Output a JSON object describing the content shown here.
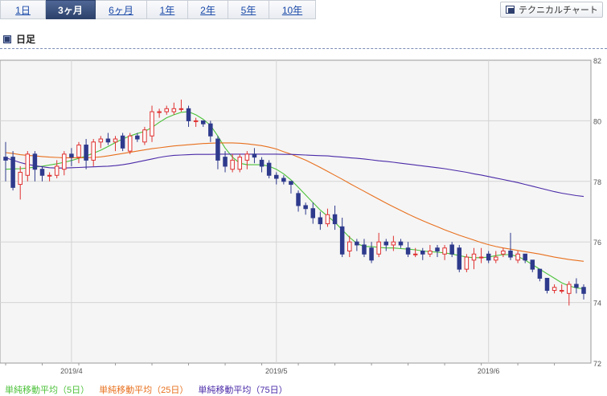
{
  "tabs": [
    {
      "label": "1日",
      "active": false
    },
    {
      "label": "3ヶ月",
      "active": true
    },
    {
      "label": "6ヶ月",
      "active": false
    },
    {
      "label": "1年",
      "active": false
    },
    {
      "label": "2年",
      "active": false
    },
    {
      "label": "5年",
      "active": false
    },
    {
      "label": "10年",
      "active": false
    }
  ],
  "technical_chart_button": "テクニカルチャート",
  "section_title": "日足",
  "colors": {
    "up": "#e03030",
    "down": "#2e3a8c",
    "ma5": "#4cc23a",
    "ma25": "#e8701e",
    "ma75": "#4a2aa8",
    "grid": "#d4d4d4"
  },
  "chart_data": {
    "type": "candlestick",
    "ylim": [
      72,
      82
    ],
    "y_ticks": [
      "72",
      "74",
      "76",
      "78",
      "80",
      "82"
    ],
    "x_labels": [
      {
        "label": "2019/4",
        "index": 9
      },
      {
        "label": "2019/5",
        "index": 37
      },
      {
        "label": "2019/6",
        "index": 66
      }
    ],
    "candles": [
      [
        78.8,
        78.7,
        78.0,
        79.3
      ],
      [
        78.8,
        77.8,
        77.7,
        79.0
      ],
      [
        77.9,
        78.3,
        77.4,
        78.5
      ],
      [
        78.2,
        78.9,
        78.0,
        79.0
      ],
      [
        78.9,
        78.4,
        78.0,
        79.0
      ],
      [
        78.4,
        78.2,
        78.0,
        78.5
      ],
      [
        78.2,
        78.2,
        78.0,
        78.3
      ],
      [
        78.2,
        78.5,
        78.1,
        78.7
      ],
      [
        78.4,
        78.9,
        78.2,
        79.0
      ],
      [
        78.9,
        78.8,
        78.5,
        79.1
      ],
      [
        78.8,
        79.2,
        78.6,
        79.3
      ],
      [
        79.2,
        78.7,
        78.4,
        79.4
      ],
      [
        78.7,
        79.3,
        78.5,
        79.4
      ],
      [
        79.3,
        79.4,
        79.1,
        79.5
      ],
      [
        79.4,
        79.3,
        79.2,
        79.6
      ],
      [
        79.3,
        79.4,
        79.0,
        79.5
      ],
      [
        79.5,
        79.1,
        79.0,
        79.6
      ],
      [
        79.0,
        79.5,
        78.9,
        79.6
      ],
      [
        79.5,
        79.4,
        79.3,
        79.6
      ],
      [
        79.3,
        79.7,
        79.2,
        79.8
      ],
      [
        79.5,
        80.3,
        79.3,
        80.5
      ],
      [
        80.3,
        80.3,
        80.1,
        80.4
      ],
      [
        80.3,
        80.4,
        80.2,
        80.5
      ],
      [
        80.3,
        80.4,
        80.2,
        80.6
      ],
      [
        80.4,
        80.4,
        80.3,
        80.7
      ],
      [
        80.4,
        80.0,
        79.8,
        80.5
      ],
      [
        80.0,
        80.0,
        79.8,
        80.1
      ],
      [
        80.0,
        79.9,
        79.8,
        80.0
      ],
      [
        79.9,
        79.5,
        79.3,
        80.0
      ],
      [
        79.4,
        78.7,
        78.4,
        79.5
      ],
      [
        78.8,
        78.5,
        78.3,
        79.0
      ],
      [
        78.4,
        78.7,
        78.3,
        78.9
      ],
      [
        78.4,
        78.8,
        78.3,
        78.9
      ],
      [
        78.7,
        78.9,
        78.4,
        79.0
      ],
      [
        78.9,
        78.8,
        78.6,
        79.1
      ],
      [
        78.7,
        78.5,
        78.3,
        78.8
      ],
      [
        78.6,
        78.2,
        78.1,
        78.7
      ],
      [
        78.2,
        78.1,
        77.9,
        78.3
      ],
      [
        78.1,
        78.0,
        77.9,
        78.2
      ],
      [
        78.0,
        77.9,
        77.6,
        78.0
      ],
      [
        77.6,
        77.2,
        77.0,
        77.7
      ],
      [
        77.2,
        77.1,
        76.9,
        77.3
      ],
      [
        77.1,
        76.8,
        76.6,
        77.3
      ],
      [
        76.8,
        76.6,
        76.4,
        77.0
      ],
      [
        76.6,
        76.9,
        76.5,
        77.1
      ],
      [
        76.9,
        76.6,
        76.4,
        77.2
      ],
      [
        76.5,
        75.6,
        75.5,
        76.8
      ],
      [
        75.7,
        76.0,
        75.5,
        76.2
      ],
      [
        76.0,
        75.9,
        75.7,
        76.1
      ],
      [
        75.9,
        75.6,
        75.5,
        76.1
      ],
      [
        75.8,
        75.4,
        75.3,
        76.0
      ],
      [
        75.6,
        76.0,
        75.5,
        76.3
      ],
      [
        76.0,
        75.9,
        75.7,
        76.1
      ],
      [
        75.9,
        76.0,
        75.7,
        76.2
      ],
      [
        76.0,
        75.9,
        75.8,
        76.1
      ],
      [
        75.8,
        75.6,
        75.5,
        76.0
      ],
      [
        75.6,
        75.6,
        75.5,
        75.8
      ],
      [
        75.7,
        75.6,
        75.4,
        75.8
      ],
      [
        75.6,
        75.7,
        75.5,
        75.9
      ],
      [
        75.8,
        75.7,
        75.5,
        75.9
      ],
      [
        75.6,
        75.8,
        75.4,
        75.9
      ],
      [
        75.9,
        75.6,
        75.5,
        76.0
      ],
      [
        75.8,
        75.1,
        75.0,
        75.9
      ],
      [
        75.1,
        75.5,
        75.0,
        75.6
      ],
      [
        75.4,
        75.6,
        75.1,
        75.8
      ],
      [
        75.5,
        75.5,
        75.3,
        75.8
      ],
      [
        75.6,
        75.4,
        75.3,
        75.7
      ],
      [
        75.4,
        75.5,
        75.3,
        75.7
      ],
      [
        75.6,
        75.7,
        75.5,
        75.8
      ],
      [
        75.7,
        75.5,
        75.4,
        76.3
      ],
      [
        75.4,
        75.6,
        75.3,
        75.7
      ],
      [
        75.6,
        75.4,
        75.3,
        75.6
      ],
      [
        75.4,
        75.1,
        75.0,
        75.4
      ],
      [
        75.1,
        74.8,
        74.7,
        75.1
      ],
      [
        74.8,
        74.4,
        74.3,
        74.8
      ],
      [
        74.4,
        74.5,
        74.3,
        74.6
      ],
      [
        74.4,
        74.4,
        74.3,
        74.6
      ],
      [
        74.3,
        74.6,
        73.9,
        74.7
      ],
      [
        74.6,
        74.5,
        74.3,
        74.8
      ],
      [
        74.5,
        74.3,
        74.1,
        74.6
      ]
    ],
    "series": [
      {
        "name": "単純移動平均（5日）",
        "color": "#4cc23a",
        "values": [
          78.4,
          78.41,
          78.42,
          78.44,
          78.47,
          78.5,
          78.54,
          78.58,
          78.63,
          78.69,
          78.76,
          78.84,
          78.93,
          79.03,
          79.15,
          79.28,
          79.4,
          79.5,
          79.58,
          79.65,
          79.78,
          79.95,
          80.1,
          80.2,
          80.28,
          80.3,
          80.2,
          80.05,
          79.85,
          79.5,
          79.1,
          78.8,
          78.6,
          78.55,
          78.55,
          78.55,
          78.5,
          78.4,
          78.25,
          78.05,
          77.8,
          77.55,
          77.3,
          77.05,
          76.85,
          76.65,
          76.4,
          76.15,
          75.95,
          75.85,
          75.85,
          75.82,
          75.8,
          75.8,
          75.78,
          75.76,
          75.74,
          75.7,
          75.68,
          75.66,
          75.64,
          75.6,
          75.55,
          75.5,
          75.48,
          75.48,
          75.5,
          75.55,
          75.58,
          75.58,
          75.52,
          75.4,
          75.25,
          75.1,
          74.95,
          74.8,
          74.65,
          74.55,
          74.48,
          74.45
        ]
      },
      {
        "name": "単純移動平均（25日）",
        "color": "#e8701e",
        "values": [
          78.95,
          78.92,
          78.88,
          78.86,
          78.84,
          78.82,
          78.8,
          78.79,
          78.78,
          78.78,
          78.78,
          78.78,
          78.79,
          78.81,
          78.84,
          78.88,
          78.92,
          78.96,
          79.0,
          79.04,
          79.08,
          79.11,
          79.14,
          79.17,
          79.19,
          79.21,
          79.23,
          79.25,
          79.26,
          79.27,
          79.27,
          79.27,
          79.26,
          79.24,
          79.21,
          79.18,
          79.13,
          79.07,
          78.98,
          78.9,
          78.8,
          78.7,
          78.58,
          78.46,
          78.33,
          78.2,
          78.07,
          77.93,
          77.8,
          77.67,
          77.54,
          77.41,
          77.28,
          77.16,
          77.04,
          76.92,
          76.81,
          76.7,
          76.6,
          76.5,
          76.4,
          76.31,
          76.22,
          76.14,
          76.06,
          75.98,
          75.91,
          75.85,
          75.8,
          75.76,
          75.72,
          75.68,
          75.64,
          75.6,
          75.55,
          75.5,
          75.46,
          75.42,
          75.39,
          75.36
        ]
      },
      {
        "name": "単純移動平均（75日）",
        "color": "#4a2aa8",
        "values": [
          78.78,
          78.7,
          78.62,
          78.56,
          78.52,
          78.48,
          78.45,
          78.44,
          78.44,
          78.45,
          78.46,
          78.47,
          78.48,
          78.49,
          78.5,
          78.52,
          78.55,
          78.59,
          78.64,
          78.69,
          78.74,
          78.79,
          78.83,
          78.86,
          78.87,
          78.88,
          78.89,
          78.89,
          78.89,
          78.9,
          78.9,
          78.9,
          78.9,
          78.9,
          78.9,
          78.9,
          78.9,
          78.9,
          78.89,
          78.89,
          78.88,
          78.87,
          78.86,
          78.85,
          78.84,
          78.82,
          78.8,
          78.78,
          78.76,
          78.74,
          78.71,
          78.68,
          78.66,
          78.63,
          78.6,
          78.57,
          78.54,
          78.51,
          78.48,
          78.45,
          78.42,
          78.38,
          78.34,
          78.3,
          78.25,
          78.21,
          78.16,
          78.11,
          78.06,
          78.01,
          77.96,
          77.9,
          77.84,
          77.78,
          77.72,
          77.66,
          77.61,
          77.57,
          77.53,
          77.5
        ]
      }
    ]
  },
  "legend": [
    {
      "label": "単純移動平均（5日）",
      "color": "#4cc23a"
    },
    {
      "label": "単純移動平均（25日）",
      "color": "#e8701e"
    },
    {
      "label": "単純移動平均（75日）",
      "color": "#4a2aa8"
    }
  ]
}
